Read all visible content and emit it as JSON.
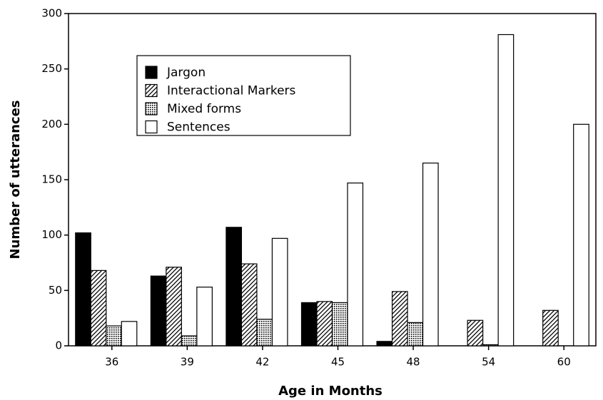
{
  "chart_data": {
    "type": "bar",
    "xlabel": "Age in Months",
    "ylabel": "Number of utterances",
    "categories": [
      "36",
      "39",
      "42",
      "45",
      "48",
      "54",
      "60"
    ],
    "series": [
      {
        "name": "Jargon",
        "color": "#000000",
        "pattern": "solid",
        "values": [
          102,
          63,
          107,
          39,
          4,
          0,
          0
        ]
      },
      {
        "name": "Interactional Markers",
        "color": "#000000",
        "pattern": "hatch",
        "values": [
          68,
          71,
          74,
          40,
          49,
          23,
          32
        ]
      },
      {
        "name": "Mixed forms",
        "color": "#000000",
        "pattern": "dots",
        "values": [
          18,
          9,
          24,
          39,
          21,
          1,
          0
        ]
      },
      {
        "name": "Sentences",
        "color": "#000000",
        "pattern": "none",
        "values": [
          22,
          53,
          97,
          147,
          165,
          281,
          200
        ]
      }
    ],
    "ylim": [
      0,
      300
    ],
    "yticks": [
      0,
      50,
      100,
      150,
      200,
      250,
      300
    ],
    "legend": "upper left"
  }
}
